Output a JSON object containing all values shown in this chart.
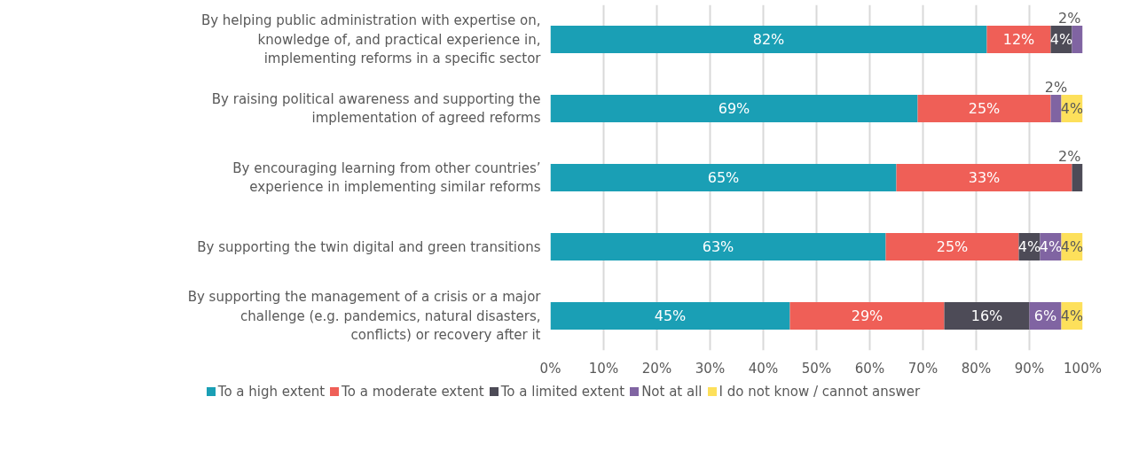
{
  "chart_data": {
    "type": "bar",
    "orientation": "horizontal",
    "stacked": true,
    "categories": [
      "By helping public administration with expertise on, knowledge of, and practical experience in, implementing reforms in a specific sector",
      "By raising political awareness and supporting the implementation of agreed reforms",
      "By encouraging learning from other countries’ experience in implementing similar reforms",
      "By supporting the twin digital and green transitions",
      "By supporting the management of a crisis or a major challenge (e.g. pandemics, natural disasters, conflicts) or recovery after it"
    ],
    "series": [
      {
        "name": "To a high extent",
        "color": "#1a9fb5",
        "values": [
          82,
          69,
          65,
          63,
          45
        ],
        "value_labels": [
          "82%",
          "69%",
          "65%",
          "63%",
          "45%"
        ]
      },
      {
        "name": "To a moderate extent",
        "color": "#ef5f57",
        "values": [
          12,
          25,
          33,
          25,
          29
        ],
        "value_labels": [
          "12%",
          "25%",
          "33%",
          "25%",
          "29%"
        ]
      },
      {
        "name": "To a limited extent",
        "color": "#4d4b57",
        "values": [
          4,
          null,
          2,
          4,
          16
        ],
        "value_labels": [
          "4%",
          null,
          "2%",
          "4%",
          "16%"
        ]
      },
      {
        "name": "Not at all",
        "color": "#8064a2",
        "values": [
          2,
          2,
          null,
          4,
          6
        ],
        "value_labels": [
          "2%",
          "2%",
          null,
          "4%",
          "6%"
        ]
      },
      {
        "name": "I do not know / cannot answer",
        "color": "#fde05b",
        "values": [
          null,
          4,
          null,
          4,
          4
        ],
        "value_labels": [
          null,
          "4%",
          null,
          "4%",
          "4%"
        ]
      }
    ],
    "xlim": [
      0,
      100
    ],
    "xticks": [
      {
        "value": 0,
        "label": "0%"
      },
      {
        "value": 10,
        "label": "10%"
      },
      {
        "value": 20,
        "label": "20%"
      },
      {
        "value": 30,
        "label": "30%"
      },
      {
        "value": 40,
        "label": "40%"
      },
      {
        "value": 50,
        "label": "50%"
      },
      {
        "value": 60,
        "label": "60%"
      },
      {
        "value": 70,
        "label": "70%"
      },
      {
        "value": 80,
        "label": "80%"
      },
      {
        "value": 90,
        "label": "90%"
      },
      {
        "value": 100,
        "label": "100%"
      }
    ],
    "grid": "x",
    "legend": "bottom"
  }
}
